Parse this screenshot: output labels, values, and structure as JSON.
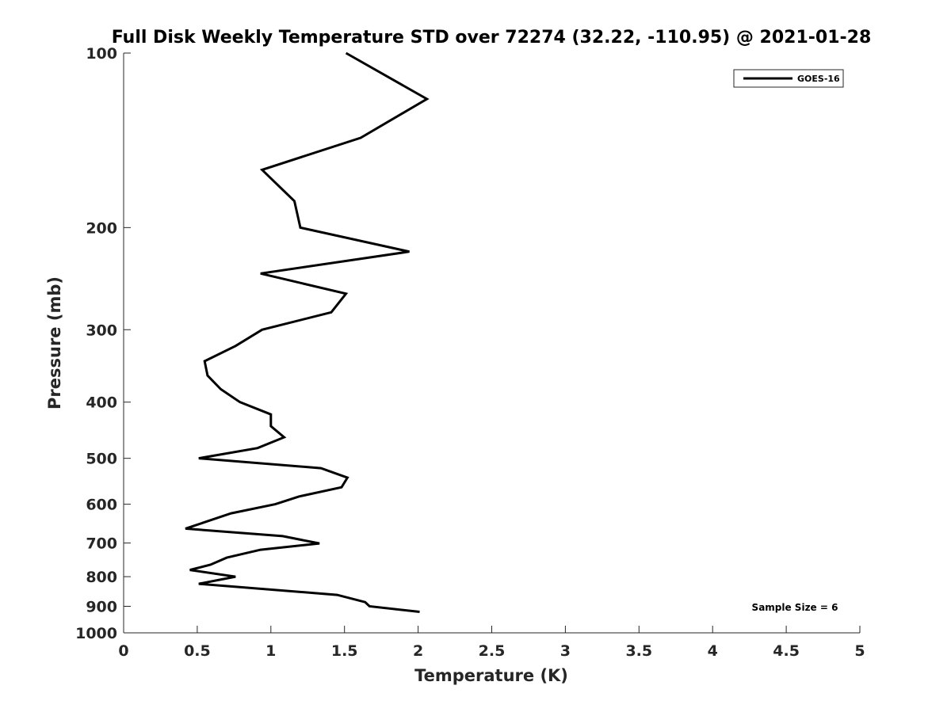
{
  "chart_data": {
    "type": "line",
    "title": "Full Disk Weekly Temperature STD over 72274 (32.22, -110.95) @ 2021-01-28",
    "xlabel": "Temperature (K)",
    "ylabel": "Pressure (mb)",
    "xlim": [
      0,
      5
    ],
    "ylim": [
      100,
      1000
    ],
    "yscale": "log",
    "y_reversed": true,
    "grid": false,
    "xticks": [
      0,
      0.5,
      1,
      1.5,
      2,
      2.5,
      3,
      3.5,
      4,
      4.5,
      5
    ],
    "xtick_labels": [
      "0",
      "0.5",
      "1",
      "1.5",
      "2",
      "2.5",
      "3",
      "3.5",
      "4",
      "4.5",
      "5"
    ],
    "yticks": [
      100,
      200,
      300,
      400,
      500,
      600,
      700,
      800,
      900,
      1000
    ],
    "ytick_labels": [
      "100",
      "200",
      "300",
      "400",
      "500",
      "600",
      "700",
      "800",
      "900",
      "1000"
    ],
    "legend_position": "top-right",
    "annotation": "Sample Size = 6",
    "series": [
      {
        "name": "GOES-16",
        "color": "#000000",
        "x": [
          1.51,
          2.06,
          1.61,
          0.94,
          1.16,
          1.2,
          1.94,
          0.93,
          1.51,
          1.41,
          0.94,
          0.76,
          0.55,
          0.57,
          0.66,
          0.79,
          1.0,
          1.0,
          1.09,
          0.91,
          0.51,
          1.34,
          1.52,
          1.48,
          1.19,
          1.03,
          0.73,
          0.57,
          0.42,
          1.08,
          1.33,
          0.93,
          0.7,
          0.59,
          0.45,
          0.76,
          0.51,
          1.45,
          1.64,
          1.67,
          2.01
        ],
        "y": [
          100,
          120,
          140,
          159,
          180,
          200,
          220,
          240,
          260,
          280,
          300,
          320,
          340,
          360,
          380,
          400,
          420,
          440,
          460,
          480,
          500,
          520,
          540,
          561,
          582,
          600,
          622,
          642,
          661,
          681,
          701,
          719,
          742,
          763,
          779,
          800,
          823,
          860,
          885,
          900,
          920
        ]
      }
    ]
  }
}
